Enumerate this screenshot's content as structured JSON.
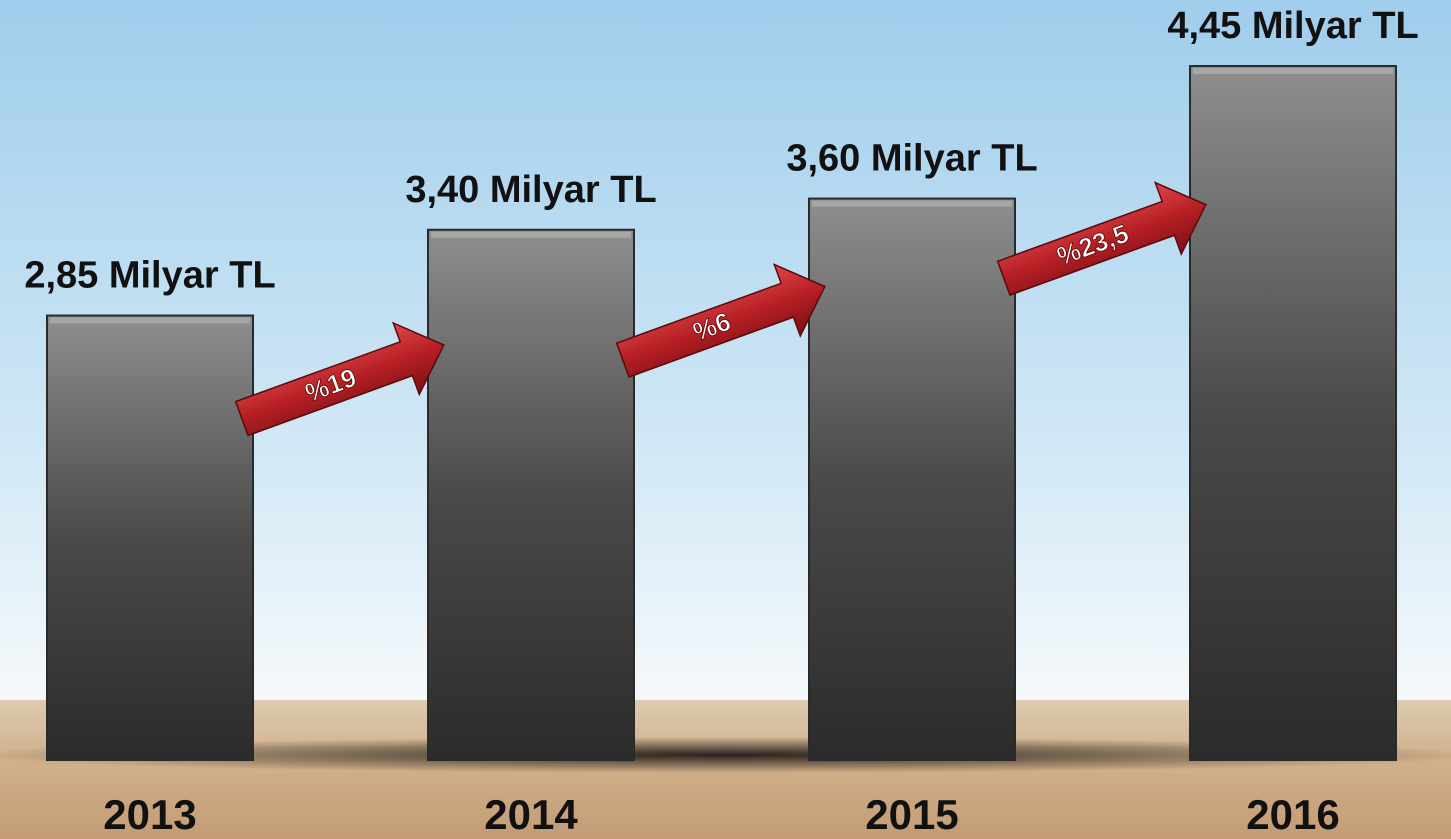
{
  "chart_data": {
    "type": "bar",
    "categories": [
      "2013",
      "2014",
      "2015",
      "2016"
    ],
    "values": [
      2.85,
      3.4,
      3.6,
      4.45
    ],
    "value_labels": [
      "2,85 Milyar TL",
      "3,40 Milyar TL",
      "3,60 Milyar TL",
      "4,45 Milyar TL"
    ],
    "annotations": [
      "%19",
      "%6",
      "%23,5"
    ],
    "color": "#4a4a4a"
  }
}
